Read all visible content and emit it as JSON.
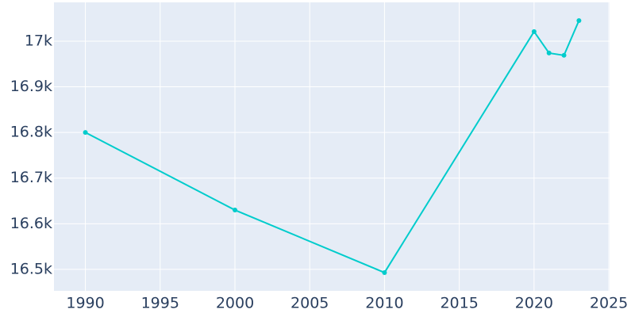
{
  "chart_data": {
    "type": "line",
    "x": [
      1990,
      2000,
      2010,
      2020,
      2021,
      2022,
      2023
    ],
    "series": [
      {
        "color": "#00cccc",
        "values": [
          16800,
          16630,
          16493,
          17021,
          16974,
          16969,
          17045
        ]
      }
    ],
    "xlim": [
      1987.9,
      2025.05
    ],
    "ylim": [
      16453,
      17085
    ],
    "xticks": [
      1990,
      1995,
      2000,
      2005,
      2010,
      2015,
      2020,
      2025
    ],
    "yticks": [
      {
        "value": 16500,
        "label": "16.5k"
      },
      {
        "value": 16600,
        "label": "16.6k"
      },
      {
        "value": 16700,
        "label": "16.7k"
      },
      {
        "value": 16800,
        "label": "16.8k"
      },
      {
        "value": 16900,
        "label": "16.9k"
      },
      {
        "value": 17000,
        "label": "17k"
      }
    ],
    "grid": true
  }
}
